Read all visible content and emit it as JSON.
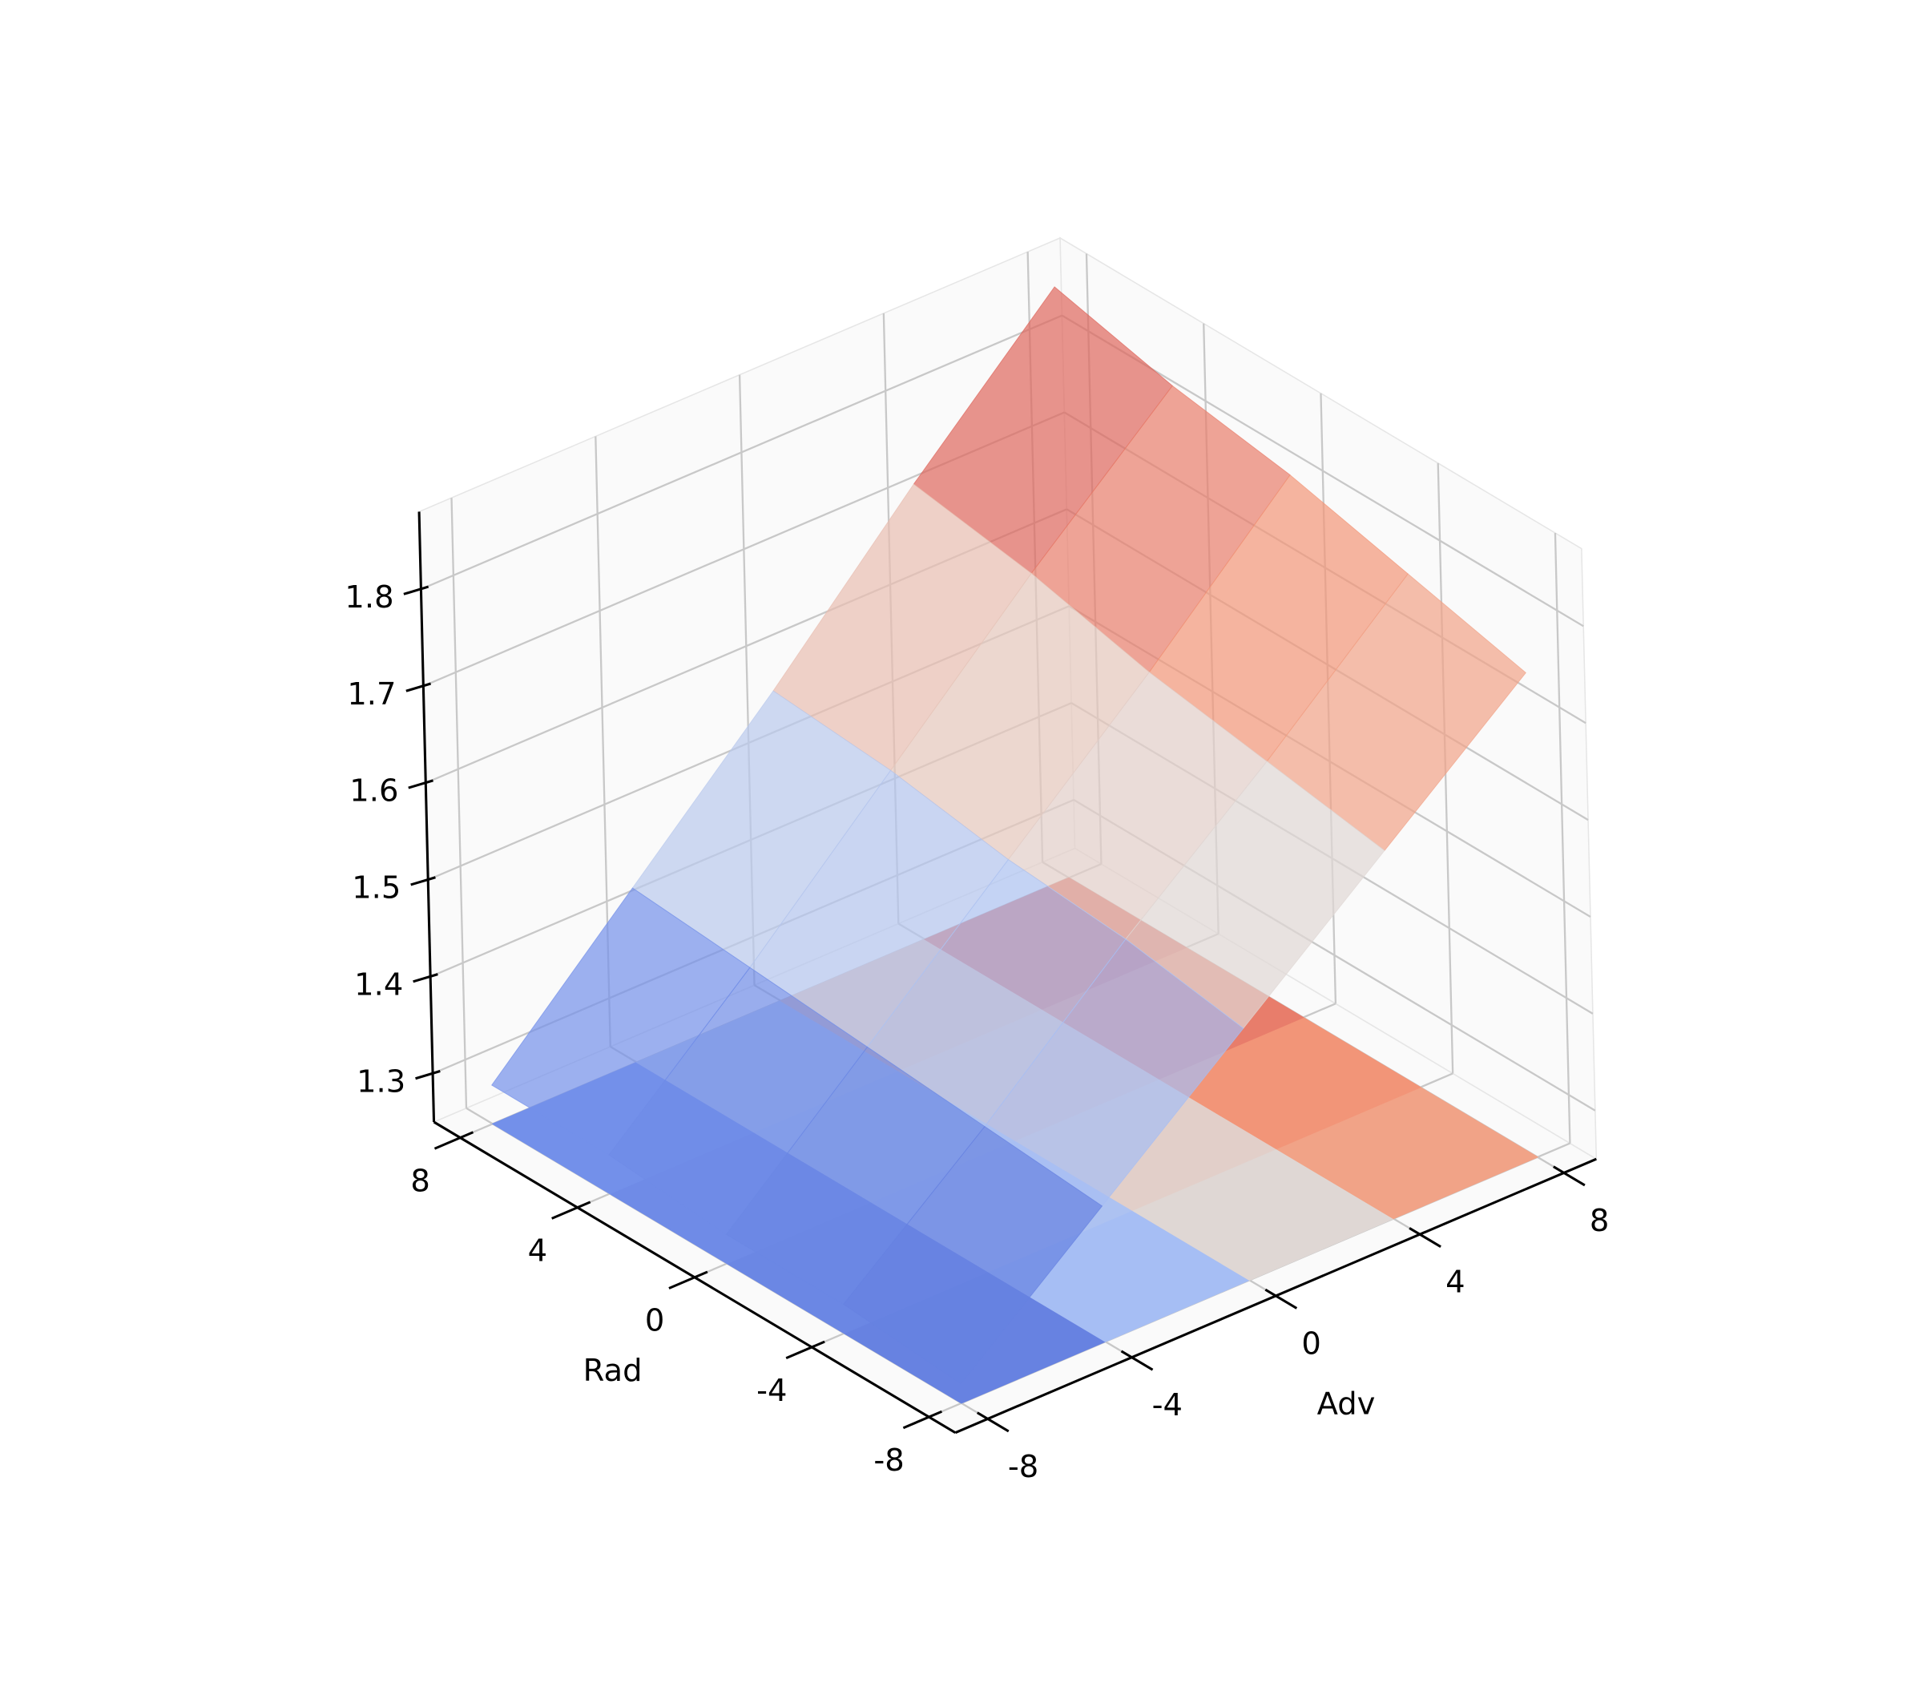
{
  "chart_data": {
    "type": "surface3d",
    "x_label": "Adv",
    "y_label": "Rad",
    "x": [
      -8,
      -4,
      0,
      4,
      8
    ],
    "y": [
      -8,
      -4,
      0,
      4,
      8
    ],
    "z": [
      [
        1.27,
        1.39,
        1.51,
        1.63,
        1.75
      ],
      [
        1.28,
        1.4,
        1.53,
        1.65,
        1.78
      ],
      [
        1.28,
        1.41,
        1.54,
        1.67,
        1.81
      ],
      [
        1.29,
        1.42,
        1.56,
        1.7,
        1.83
      ],
      [
        1.29,
        1.43,
        1.57,
        1.72,
        1.86
      ]
    ],
    "xlim": [
      -8.9,
      8.9
    ],
    "ylim": [
      -8.9,
      8.9
    ],
    "zlim": [
      1.25,
      1.88
    ],
    "xticks": [
      -8,
      -4,
      0,
      4,
      8
    ],
    "yticks": [
      -8,
      -4,
      0,
      4,
      8
    ],
    "zticks": [
      1.3,
      1.4,
      1.5,
      1.6,
      1.7,
      1.8
    ],
    "colormap": "coolwarm",
    "surface_alpha": 0.7,
    "floor_contour": true,
    "grid": true
  }
}
